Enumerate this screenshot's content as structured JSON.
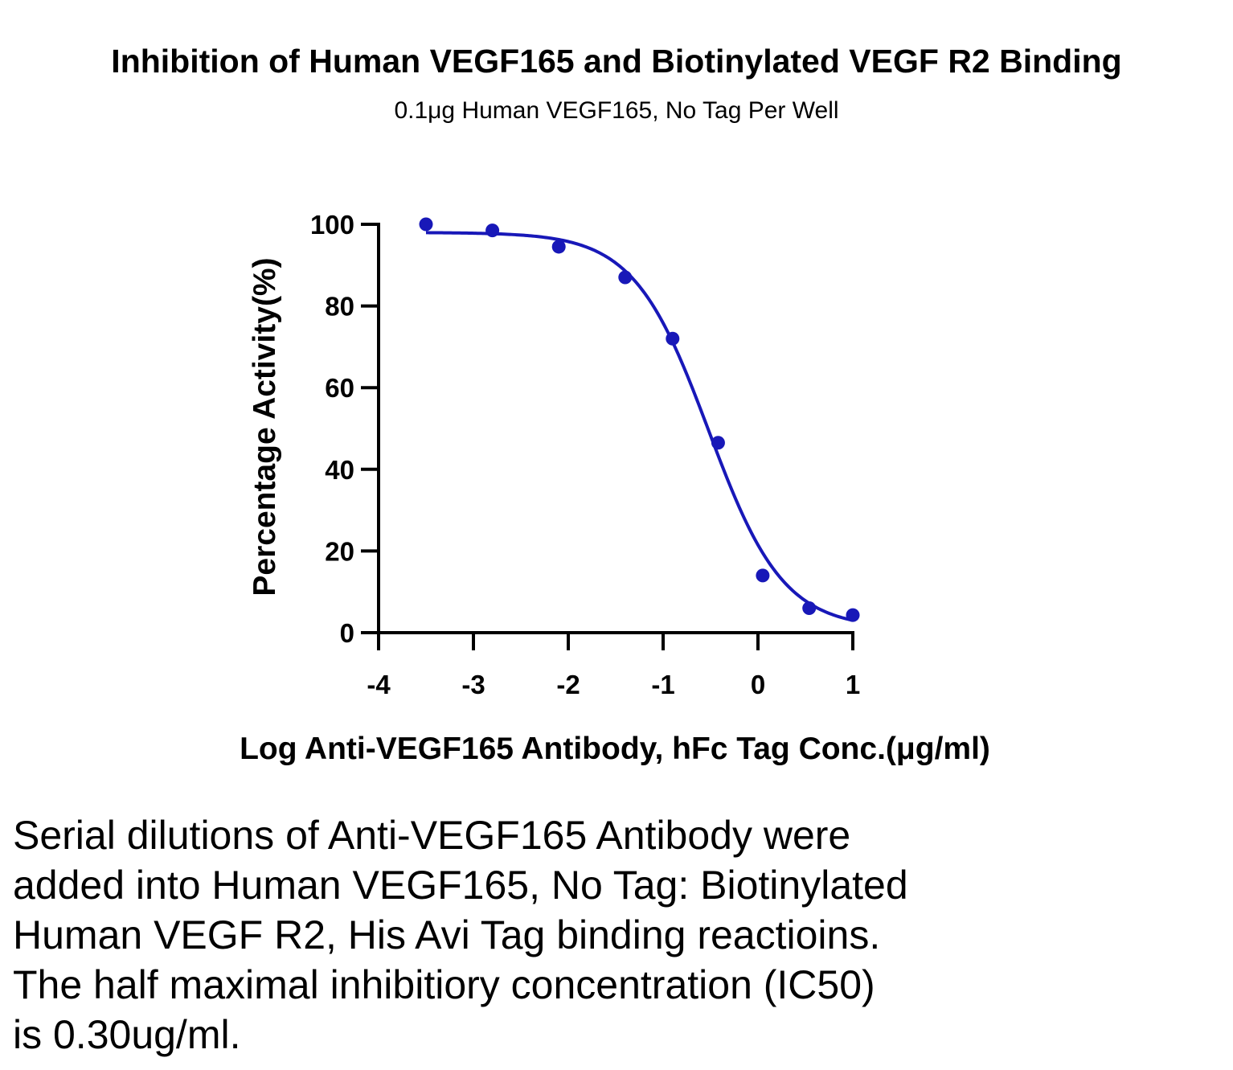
{
  "chart_data": {
    "type": "scatter",
    "title": "Inhibition of Human VEGF165 and Biotinylated VEGF R2 Binding",
    "subtitle": "0.1μg Human VEGF165, No Tag Per Well",
    "xlabel": "Log Anti-VEGF165 Antibody, hFc Tag Conc.(μg/ml)",
    "ylabel": "Percentage Activity(%)",
    "xlim": [
      -4,
      1
    ],
    "ylim": [
      0,
      100
    ],
    "xticks": [
      -4,
      -3,
      -2,
      -1,
      0,
      1
    ],
    "yticks": [
      0,
      20,
      40,
      60,
      80,
      100
    ],
    "x": [
      -3.5,
      -2.8,
      -2.1,
      -1.4,
      -0.9,
      -0.42,
      0.05,
      0.54,
      1.0
    ],
    "y": [
      100,
      98.5,
      94.5,
      87,
      72,
      46.5,
      14,
      6,
      4.3
    ],
    "fit": {
      "type": "four-parameter logistic",
      "top": 98,
      "bottom": 1,
      "logIC50": -0.52,
      "hillslope": -1.1,
      "x_range": [
        -3.5,
        1.0
      ]
    },
    "grid": false,
    "legend": "none",
    "color": "#1818B8"
  },
  "caption": {
    "lines": [
      "Serial dilutions of Anti-VEGF165 Antibody were",
      "added into Human VEGF165, No Tag: Biotinylated",
      "Human VEGF R2, His Avi Tag binding reactioins.",
      "The half maximal inhibitiory concentration (IC50)",
      "is 0.30ug/ml."
    ]
  }
}
